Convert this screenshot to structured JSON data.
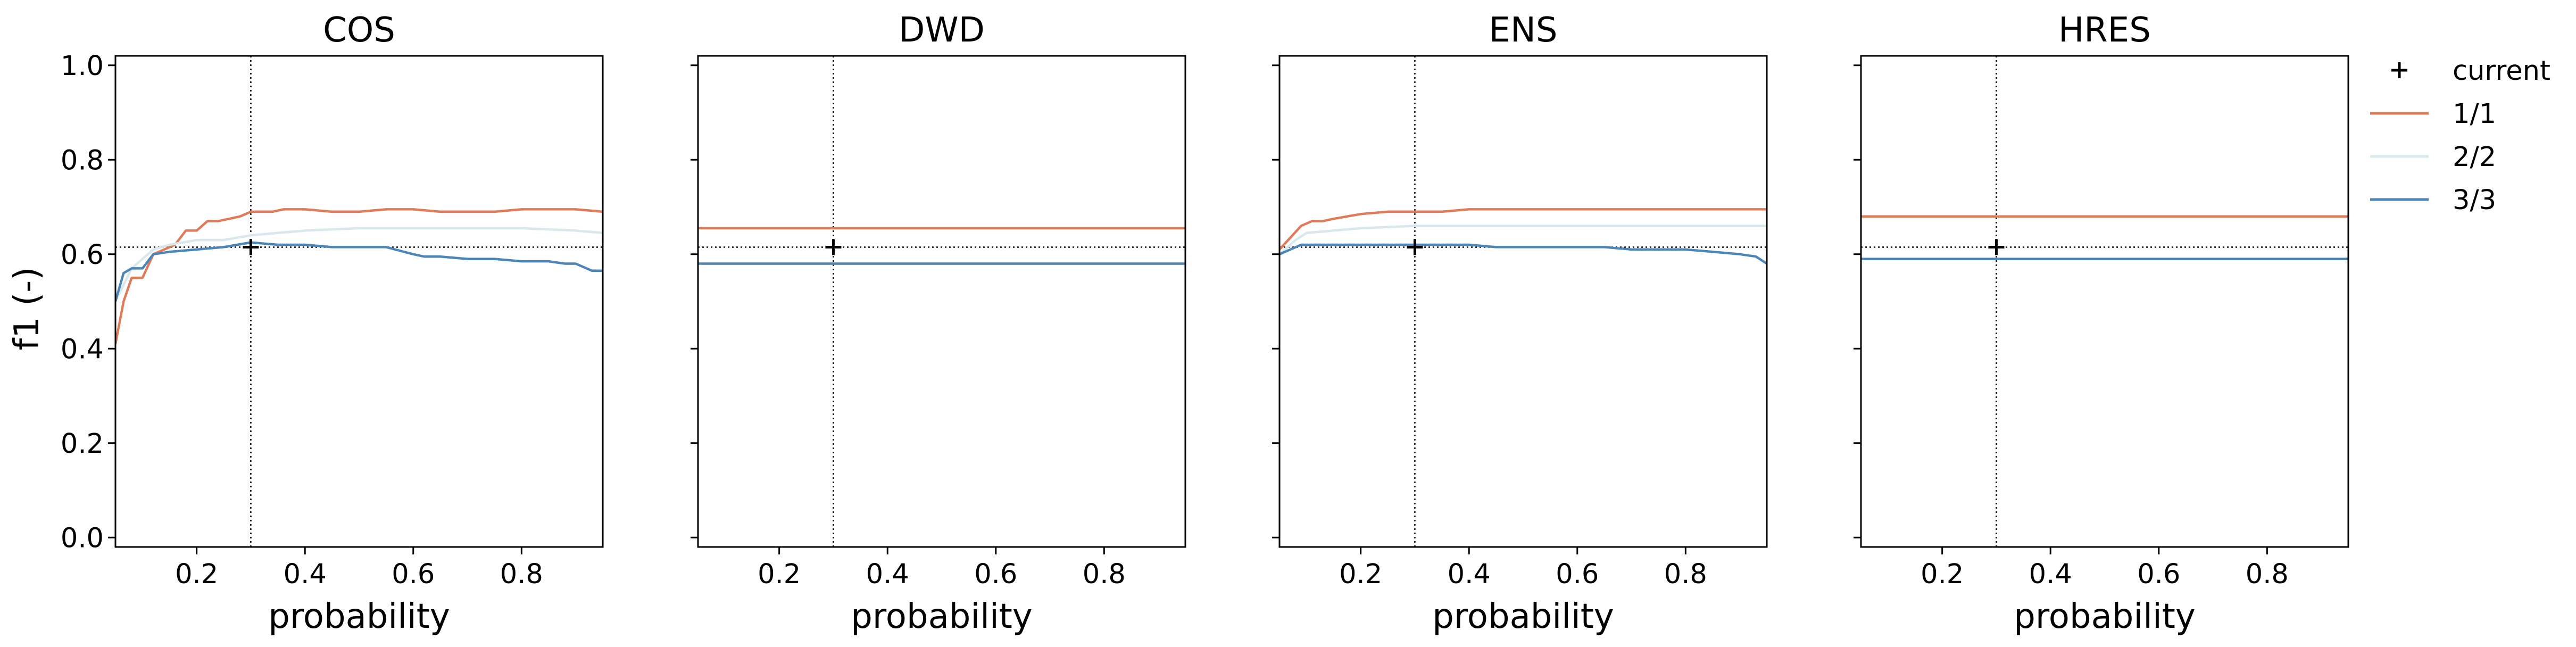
{
  "figure": {
    "ylabel": "f1 (-)",
    "xlabel": "probability",
    "legend": {
      "placement": "outside-right",
      "entries": [
        {
          "label": "current",
          "marker": "plus",
          "color": "#000000"
        },
        {
          "label": "1/1",
          "color": "#e07b5a"
        },
        {
          "label": "2/2",
          "color": "#d9e8ec"
        },
        {
          "label": "3/3",
          "color": "#4c86b8"
        }
      ]
    }
  },
  "chart_data": [
    {
      "type": "line",
      "title": "COS",
      "xlabel": "probability",
      "ylabel": "f1 (-)",
      "xlim": [
        0.05,
        0.95
      ],
      "ylim": [
        -0.02,
        1.02
      ],
      "xticks": [
        "0.2",
        "0.4",
        "0.6",
        "0.8"
      ],
      "yticks": [
        "0.0",
        "0.2",
        "0.4",
        "0.6",
        "0.8",
        "1.0"
      ],
      "reference": {
        "x": 0.3,
        "y": 0.615
      },
      "current": {
        "x": 0.3,
        "y": 0.615
      },
      "series": [
        {
          "name": "1/1",
          "color": "#e07b5a",
          "x": [
            0.05,
            0.065,
            0.08,
            0.1,
            0.12,
            0.14,
            0.16,
            0.18,
            0.2,
            0.22,
            0.24,
            0.26,
            0.28,
            0.3,
            0.32,
            0.34,
            0.36,
            0.4,
            0.45,
            0.5,
            0.55,
            0.6,
            0.65,
            0.7,
            0.75,
            0.8,
            0.85,
            0.9,
            0.95
          ],
          "y": [
            0.41,
            0.5,
            0.55,
            0.55,
            0.6,
            0.61,
            0.62,
            0.65,
            0.65,
            0.67,
            0.67,
            0.675,
            0.68,
            0.69,
            0.69,
            0.69,
            0.695,
            0.695,
            0.69,
            0.69,
            0.695,
            0.695,
            0.69,
            0.69,
            0.69,
            0.695,
            0.695,
            0.695,
            0.69
          ]
        },
        {
          "name": "2/2",
          "color": "#d9e8ec",
          "x": [
            0.05,
            0.08,
            0.1,
            0.12,
            0.15,
            0.2,
            0.25,
            0.3,
            0.35,
            0.4,
            0.5,
            0.6,
            0.7,
            0.8,
            0.9,
            0.95
          ],
          "y": [
            0.5,
            0.57,
            0.59,
            0.61,
            0.62,
            0.63,
            0.63,
            0.64,
            0.645,
            0.65,
            0.655,
            0.655,
            0.655,
            0.655,
            0.65,
            0.645
          ]
        },
        {
          "name": "3/3",
          "color": "#4c86b8",
          "x": [
            0.05,
            0.065,
            0.08,
            0.1,
            0.12,
            0.15,
            0.2,
            0.25,
            0.3,
            0.35,
            0.4,
            0.45,
            0.5,
            0.55,
            0.6,
            0.62,
            0.65,
            0.7,
            0.75,
            0.8,
            0.85,
            0.88,
            0.9,
            0.93,
            0.95
          ],
          "y": [
            0.5,
            0.56,
            0.57,
            0.57,
            0.6,
            0.605,
            0.61,
            0.615,
            0.625,
            0.62,
            0.62,
            0.615,
            0.615,
            0.615,
            0.6,
            0.595,
            0.595,
            0.59,
            0.59,
            0.585,
            0.585,
            0.58,
            0.58,
            0.565,
            0.565
          ]
        }
      ]
    },
    {
      "type": "line",
      "title": "DWD",
      "xlabel": "probability",
      "xlim": [
        0.05,
        0.95
      ],
      "ylim": [
        -0.02,
        1.02
      ],
      "xticks": [
        "0.2",
        "0.4",
        "0.6",
        "0.8"
      ],
      "reference": {
        "x": 0.3,
        "y": 0.615
      },
      "current": {
        "x": 0.3,
        "y": 0.615
      },
      "series": [
        {
          "name": "1/1",
          "color": "#e07b5a",
          "x": [
            0.05,
            0.95
          ],
          "y": [
            0.655,
            0.655
          ]
        },
        {
          "name": "3/3",
          "color": "#4c86b8",
          "x": [
            0.05,
            0.95
          ],
          "y": [
            0.58,
            0.58
          ]
        }
      ]
    },
    {
      "type": "line",
      "title": "ENS",
      "xlabel": "probability",
      "xlim": [
        0.05,
        0.95
      ],
      "ylim": [
        -0.02,
        1.02
      ],
      "xticks": [
        "0.2",
        "0.4",
        "0.6",
        "0.8"
      ],
      "reference": {
        "x": 0.3,
        "y": 0.615
      },
      "current": {
        "x": 0.3,
        "y": 0.615
      },
      "series": [
        {
          "name": "1/1",
          "color": "#e07b5a",
          "x": [
            0.05,
            0.07,
            0.09,
            0.11,
            0.13,
            0.15,
            0.2,
            0.25,
            0.3,
            0.35,
            0.4,
            0.5,
            0.6,
            0.7,
            0.8,
            0.9,
            0.95
          ],
          "y": [
            0.61,
            0.635,
            0.66,
            0.67,
            0.67,
            0.675,
            0.685,
            0.69,
            0.69,
            0.69,
            0.695,
            0.695,
            0.695,
            0.695,
            0.695,
            0.695,
            0.695
          ]
        },
        {
          "name": "2/2",
          "color": "#d9e8ec",
          "x": [
            0.05,
            0.08,
            0.1,
            0.15,
            0.2,
            0.3,
            0.4,
            0.5,
            0.6,
            0.7,
            0.8,
            0.9,
            0.95
          ],
          "y": [
            0.6,
            0.63,
            0.645,
            0.65,
            0.655,
            0.66,
            0.66,
            0.66,
            0.66,
            0.66,
            0.66,
            0.66,
            0.66
          ]
        },
        {
          "name": "3/3",
          "color": "#4c86b8",
          "x": [
            0.05,
            0.07,
            0.09,
            0.12,
            0.15,
            0.2,
            0.25,
            0.3,
            0.35,
            0.4,
            0.45,
            0.5,
            0.55,
            0.6,
            0.65,
            0.7,
            0.75,
            0.8,
            0.85,
            0.9,
            0.93,
            0.95
          ],
          "y": [
            0.6,
            0.61,
            0.62,
            0.62,
            0.62,
            0.62,
            0.62,
            0.62,
            0.62,
            0.62,
            0.615,
            0.615,
            0.615,
            0.615,
            0.615,
            0.61,
            0.61,
            0.61,
            0.605,
            0.6,
            0.595,
            0.58
          ]
        }
      ]
    },
    {
      "type": "line",
      "title": "HRES",
      "xlabel": "probability",
      "xlim": [
        0.05,
        0.95
      ],
      "ylim": [
        -0.02,
        1.02
      ],
      "xticks": [
        "0.2",
        "0.4",
        "0.6",
        "0.8"
      ],
      "reference": {
        "x": 0.3,
        "y": 0.615
      },
      "current": {
        "x": 0.3,
        "y": 0.615
      },
      "series": [
        {
          "name": "1/1",
          "color": "#e07b5a",
          "x": [
            0.05,
            0.95
          ],
          "y": [
            0.68,
            0.68
          ]
        },
        {
          "name": "3/3",
          "color": "#4c86b8",
          "x": [
            0.05,
            0.95
          ],
          "y": [
            0.59,
            0.59
          ]
        }
      ]
    }
  ]
}
